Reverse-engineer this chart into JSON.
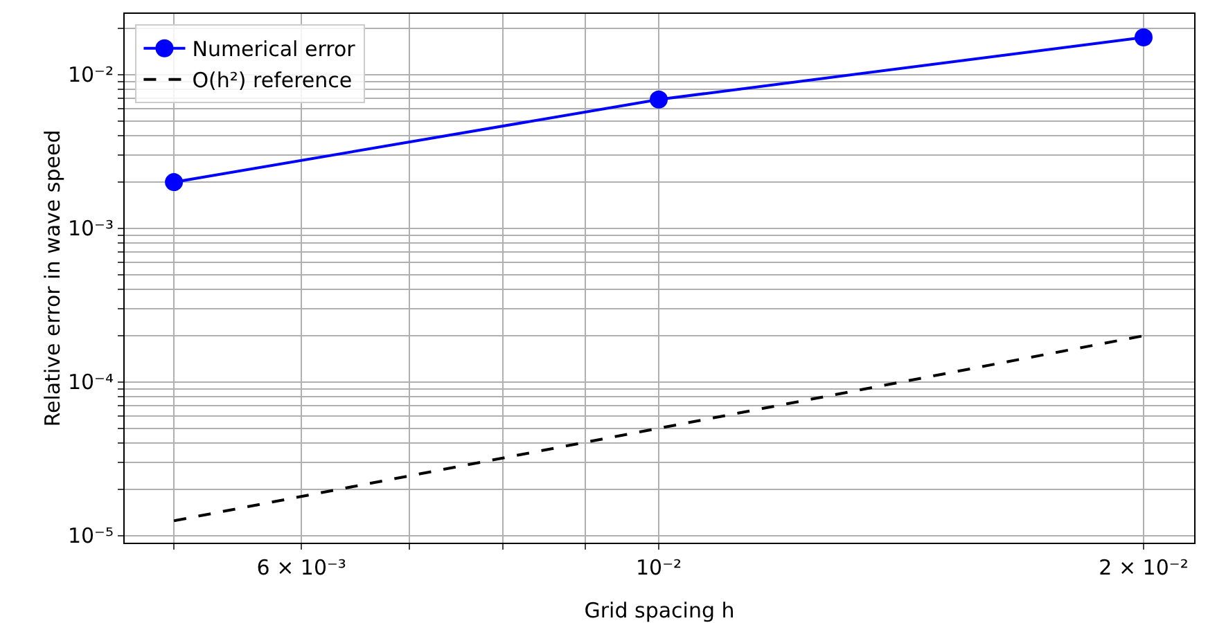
{
  "chart_data": {
    "type": "line",
    "xlabel": "Grid spacing h",
    "ylabel": "Relative error in wave speed",
    "x": [
      0.005,
      0.01,
      0.02
    ],
    "series": [
      {
        "name": "Numerical error",
        "color": "#0000ff",
        "values": [
          0.002,
          0.0069,
          0.0175
        ],
        "marker": "circle",
        "line_style": "solid"
      },
      {
        "name": "O(h²) reference",
        "color": "#000000",
        "values": [
          1.25e-05,
          5e-05,
          0.0002
        ],
        "marker": "none",
        "line_style": "dashed"
      }
    ],
    "log": "xy",
    "xlim": [
      0.00466,
      0.0215
    ],
    "ylim": [
      9e-06,
      0.0249
    ],
    "xticks": [
      {
        "value": 0.005,
        "label": null
      },
      {
        "value": 0.006,
        "label": "6 × 10⁻³"
      },
      {
        "value": 0.007,
        "label": null
      },
      {
        "value": 0.008,
        "label": null
      },
      {
        "value": 0.009,
        "label": null
      },
      {
        "value": 0.01,
        "label": "10⁻²"
      },
      {
        "value": 0.02,
        "label": "2 × 10⁻²"
      }
    ],
    "yticks": [
      {
        "value": 1e-05,
        "label": "10⁻⁵"
      },
      {
        "value": 2e-05,
        "label": null
      },
      {
        "value": 3e-05,
        "label": null
      },
      {
        "value": 4e-05,
        "label": null
      },
      {
        "value": 5e-05,
        "label": null
      },
      {
        "value": 6e-05,
        "label": null
      },
      {
        "value": 7e-05,
        "label": null
      },
      {
        "value": 8e-05,
        "label": null
      },
      {
        "value": 9e-05,
        "label": null
      },
      {
        "value": 0.0001,
        "label": "10⁻⁴"
      },
      {
        "value": 0.0002,
        "label": null
      },
      {
        "value": 0.0003,
        "label": null
      },
      {
        "value": 0.0004,
        "label": null
      },
      {
        "value": 0.0005,
        "label": null
      },
      {
        "value": 0.0006,
        "label": null
      },
      {
        "value": 0.0007,
        "label": null
      },
      {
        "value": 0.0008,
        "label": null
      },
      {
        "value": 0.0009,
        "label": null
      },
      {
        "value": 0.001,
        "label": "10⁻³"
      },
      {
        "value": 0.002,
        "label": null
      },
      {
        "value": 0.003,
        "label": null
      },
      {
        "value": 0.004,
        "label": null
      },
      {
        "value": 0.005,
        "label": null
      },
      {
        "value": 0.006,
        "label": null
      },
      {
        "value": 0.007,
        "label": null
      },
      {
        "value": 0.008,
        "label": null
      },
      {
        "value": 0.009,
        "label": null
      },
      {
        "value": 0.01,
        "label": "10⁻²"
      },
      {
        "value": 0.02,
        "label": null
      }
    ],
    "grid": true,
    "legend": "top left"
  }
}
